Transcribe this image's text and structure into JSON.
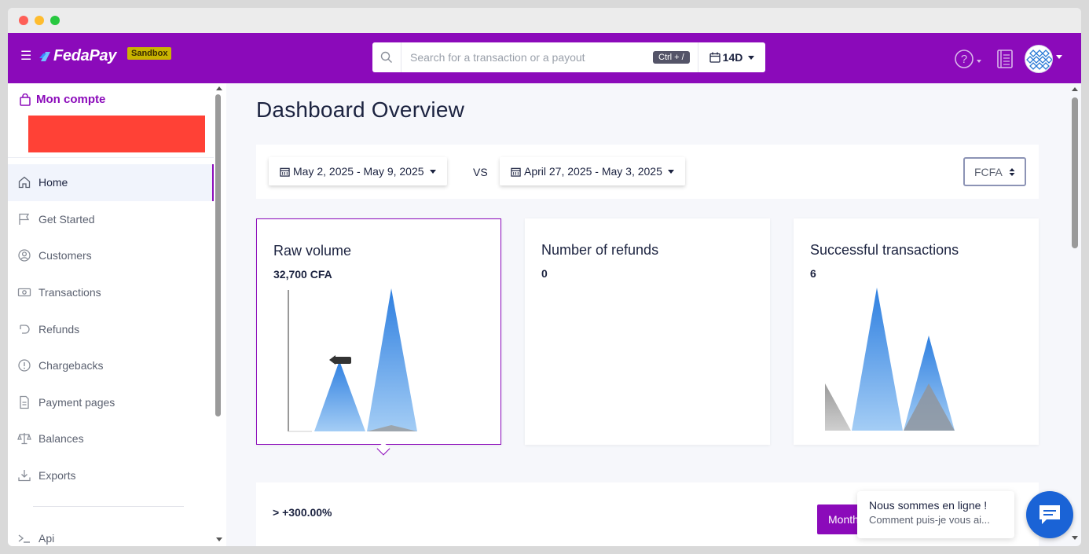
{
  "app": {
    "name": "FedaPay",
    "env_badge": "Sandbox"
  },
  "colors": {
    "brand": "#8b0aba",
    "accent_blue": "#1a63d6",
    "redaction": "#ff4136"
  },
  "window": {
    "controls": [
      "close",
      "minimize",
      "maximize"
    ]
  },
  "header": {
    "menu_icon": "hamburger-icon",
    "search_placeholder": "Search for a transaction or a payout",
    "search_shortcut": "Ctrl + /",
    "period": "14D",
    "icons": [
      "help-icon",
      "docs-icon",
      "avatar"
    ]
  },
  "sidebar": {
    "account_label": "Mon compte",
    "items": [
      {
        "label": "Home",
        "icon": "home-icon",
        "active": true
      },
      {
        "label": "Get Started",
        "icon": "flag-icon"
      },
      {
        "label": "Customers",
        "icon": "user-circle-icon"
      },
      {
        "label": "Transactions",
        "icon": "money-icon"
      },
      {
        "label": "Refunds",
        "icon": "refund-icon"
      },
      {
        "label": "Chargebacks",
        "icon": "alert-circle-icon"
      },
      {
        "label": "Payment pages",
        "icon": "document-icon"
      },
      {
        "label": "Balances",
        "icon": "scale-icon"
      },
      {
        "label": "Exports",
        "icon": "download-icon"
      }
    ],
    "api_item": {
      "label": "Api",
      "icon": "terminal-icon"
    }
  },
  "main": {
    "title": "Dashboard Overview",
    "date_range": "May 2, 2025 - May 9, 2025",
    "vs_label": "VS",
    "compare_range": "April 27, 2025 - May 3, 2025",
    "currency": "FCFA",
    "cards": [
      {
        "title": "Raw volume",
        "value": "32,700 CFA",
        "selected": true
      },
      {
        "title": "Number of refunds",
        "value": "0"
      },
      {
        "title": "Successful transactions",
        "value": "6"
      }
    ],
    "growth": "> +300.00%",
    "monthly_button": "Monthly"
  },
  "chat": {
    "line1": "Nous sommes en ligne !",
    "line2": "Comment puis-je vous ai..."
  }
}
